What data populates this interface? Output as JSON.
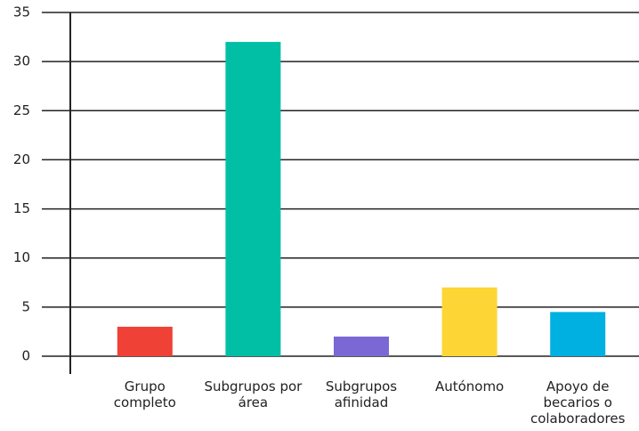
{
  "chart_data": {
    "type": "bar",
    "categories": [
      "Grupo completo",
      "Subgrupos por área",
      "Subgrupos afinidad",
      "Autónomo",
      "Apoyo de becarios o colaboradores"
    ],
    "values": [
      3,
      32,
      2,
      7,
      4.5
    ],
    "colors": [
      "#ef4136",
      "#00bfa5",
      "#7b68d4",
      "#fdd535",
      "#00b0e0"
    ],
    "ylim": [
      0,
      35
    ],
    "yticks": [
      0,
      5,
      10,
      15,
      20,
      25,
      30,
      35
    ],
    "grid": true
  }
}
